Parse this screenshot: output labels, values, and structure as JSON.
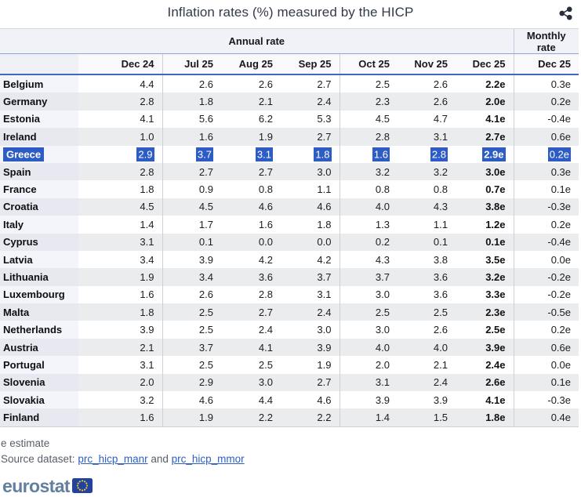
{
  "title": "Inflation rates (%) measured by the HICP",
  "chart_data": {
    "type": "table",
    "title": "Inflation rates (%) measured by the HICP",
    "unit": "%",
    "group_headers": {
      "annual": "Annual rate",
      "monthly": "Monthly rate"
    },
    "annual_columns": [
      "Dec 24",
      "Jul 25",
      "Aug 25",
      "Sep 25",
      "Oct 25",
      "Nov 25",
      "Dec 25"
    ],
    "monthly_column": "Dec 25",
    "rows": [
      {
        "country": "Belgium",
        "values": [
          "4.4",
          "2.6",
          "2.6",
          "2.7",
          "2.5",
          "2.6",
          "2.2e"
        ],
        "monthly": "0.3e",
        "selected": false
      },
      {
        "country": "Germany",
        "values": [
          "2.8",
          "1.8",
          "2.1",
          "2.4",
          "2.3",
          "2.6",
          "2.0e"
        ],
        "monthly": "0.2e",
        "selected": false
      },
      {
        "country": "Estonia",
        "values": [
          "4.1",
          "5.6",
          "6.2",
          "5.3",
          "4.5",
          "4.7",
          "4.1e"
        ],
        "monthly": "-0.4e",
        "selected": false
      },
      {
        "country": "Ireland",
        "values": [
          "1.0",
          "1.6",
          "1.9",
          "2.7",
          "2.8",
          "3.1",
          "2.7e"
        ],
        "monthly": "0.6e",
        "selected": false
      },
      {
        "country": "Greece",
        "values": [
          "2.9",
          "3.7",
          "3.1",
          "1.8",
          "1.6",
          "2.8",
          "2.9e"
        ],
        "monthly": "0.2e",
        "selected": true
      },
      {
        "country": "Spain",
        "values": [
          "2.8",
          "2.7",
          "2.7",
          "3.0",
          "3.2",
          "3.2",
          "3.0e"
        ],
        "monthly": "0.3e",
        "selected": false
      },
      {
        "country": "France",
        "values": [
          "1.8",
          "0.9",
          "0.8",
          "1.1",
          "0.8",
          "0.8",
          "0.7e"
        ],
        "monthly": "0.1e",
        "selected": false
      },
      {
        "country": "Croatia",
        "values": [
          "4.5",
          "4.5",
          "4.6",
          "4.6",
          "4.0",
          "4.3",
          "3.8e"
        ],
        "monthly": "-0.3e",
        "selected": false
      },
      {
        "country": "Italy",
        "values": [
          "1.4",
          "1.7",
          "1.6",
          "1.8",
          "1.3",
          "1.1",
          "1.2e"
        ],
        "monthly": "0.2e",
        "selected": false
      },
      {
        "country": "Cyprus",
        "values": [
          "3.1",
          "0.1",
          "0.0",
          "0.0",
          "0.2",
          "0.1",
          "0.1e"
        ],
        "monthly": "-0.4e",
        "selected": false
      },
      {
        "country": "Latvia",
        "values": [
          "3.4",
          "3.9",
          "4.2",
          "4.2",
          "4.3",
          "3.8",
          "3.5e"
        ],
        "monthly": "0.0e",
        "selected": false
      },
      {
        "country": "Lithuania",
        "values": [
          "1.9",
          "3.4",
          "3.6",
          "3.7",
          "3.7",
          "3.6",
          "3.2e"
        ],
        "monthly": "-0.2e",
        "selected": false
      },
      {
        "country": "Luxembourg",
        "values": [
          "1.6",
          "2.6",
          "2.8",
          "3.1",
          "3.0",
          "3.6",
          "3.3e"
        ],
        "monthly": "-0.2e",
        "selected": false
      },
      {
        "country": "Malta",
        "values": [
          "1.8",
          "2.5",
          "2.7",
          "2.4",
          "2.5",
          "2.5",
          "2.3e"
        ],
        "monthly": "-0.5e",
        "selected": false
      },
      {
        "country": "Netherlands",
        "values": [
          "3.9",
          "2.5",
          "2.4",
          "3.0",
          "3.0",
          "2.6",
          "2.5e"
        ],
        "monthly": "0.2e",
        "selected": false
      },
      {
        "country": "Austria",
        "values": [
          "2.1",
          "3.7",
          "4.1",
          "3.9",
          "4.0",
          "4.0",
          "3.9e"
        ],
        "monthly": "0.6e",
        "selected": false
      },
      {
        "country": "Portugal",
        "values": [
          "3.1",
          "2.5",
          "2.5",
          "1.9",
          "2.0",
          "2.1",
          "2.4e"
        ],
        "monthly": "0.0e",
        "selected": false
      },
      {
        "country": "Slovenia",
        "values": [
          "2.0",
          "2.9",
          "3.0",
          "2.7",
          "3.1",
          "2.4",
          "2.6e"
        ],
        "monthly": "0.1e",
        "selected": false
      },
      {
        "country": "Slovakia",
        "values": [
          "3.2",
          "4.6",
          "4.4",
          "4.6",
          "3.9",
          "3.9",
          "4.1e"
        ],
        "monthly": "-0.3e",
        "selected": false
      },
      {
        "country": "Finland",
        "values": [
          "1.6",
          "1.9",
          "2.2",
          "2.2",
          "1.4",
          "1.5",
          "1.8e"
        ],
        "monthly": "0.4e",
        "selected": false
      }
    ]
  },
  "footer": {
    "estimate_note": "e estimate",
    "source_label": "Source dataset: ",
    "source_link_1": "prc_hicp_manr",
    "source_separator": " and ",
    "source_link_2": "prc_hicp_mmor",
    "logo_text": "eurostat"
  },
  "icons": {
    "share": "share-icon",
    "eu_flag": "eu-flag-icon"
  },
  "colors": {
    "selection_blue": "#2e5cc5",
    "header_rule_blue": "#3f68c0",
    "header_rule_light": "#8ea6d8",
    "link_blue": "#2d5fc7",
    "logo_blue_grey": "#62809e",
    "flag_blue": "#23419e",
    "star_yellow": "#ffd617"
  }
}
